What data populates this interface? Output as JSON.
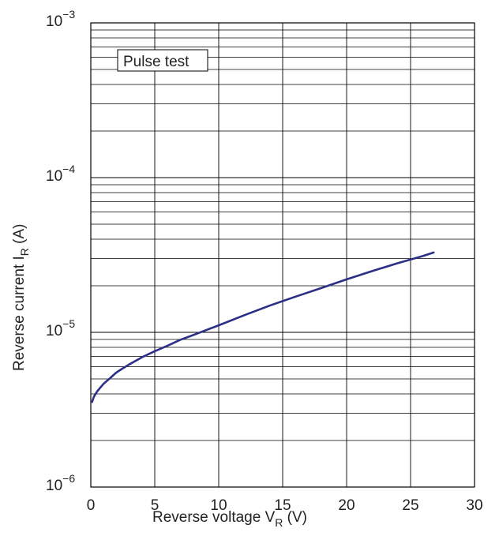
{
  "chart_data": {
    "type": "line",
    "title": "",
    "annotation": "Pulse test",
    "xlabel": {
      "main": "Reverse voltage  V",
      "sub": "R",
      "unit": "  (V)"
    },
    "ylabel": {
      "main": "Reverse current  I",
      "sub": "R",
      "unit": "  (A)"
    },
    "xlim": [
      0,
      30
    ],
    "ylim": [
      1e-06,
      0.001
    ],
    "yscale": "log",
    "grid": true,
    "x_ticks": [
      {
        "v": 0,
        "label": "0"
      },
      {
        "v": 5,
        "label": "5"
      },
      {
        "v": 10,
        "label": "10"
      },
      {
        "v": 15,
        "label": "15"
      },
      {
        "v": 20,
        "label": "20"
      },
      {
        "v": 25,
        "label": "25"
      },
      {
        "v": 30,
        "label": "30"
      }
    ],
    "y_ticks": [
      {
        "v": 1e-06,
        "base": "10",
        "exp": "−6"
      },
      {
        "v": 1e-05,
        "base": "10",
        "exp": "−5"
      },
      {
        "v": 0.0001,
        "base": "10",
        "exp": "−4"
      },
      {
        "v": 0.001,
        "base": "10",
        "exp": "−3"
      }
    ],
    "series": [
      {
        "color": "#2b2f86",
        "x": [
          0.1,
          0.25,
          0.5,
          0.75,
          1,
          1.5,
          2,
          2.5,
          3,
          4,
          5,
          6,
          7,
          8,
          10,
          12,
          14,
          16,
          18,
          20,
          22,
          24,
          26,
          26.8
        ],
        "y": [
          3.55e-06,
          3.85e-06,
          4.15e-06,
          4.4e-06,
          4.65e-06,
          5.05e-06,
          5.5e-06,
          5.85e-06,
          6.2e-06,
          6.9e-06,
          7.55e-06,
          8.2e-06,
          8.95e-06,
          9.6e-06,
          1.11e-05,
          1.29e-05,
          1.49e-05,
          1.7e-05,
          1.93e-05,
          2.2e-05,
          2.49e-05,
          2.8e-05,
          3.12e-05,
          3.28e-05
        ]
      }
    ]
  }
}
